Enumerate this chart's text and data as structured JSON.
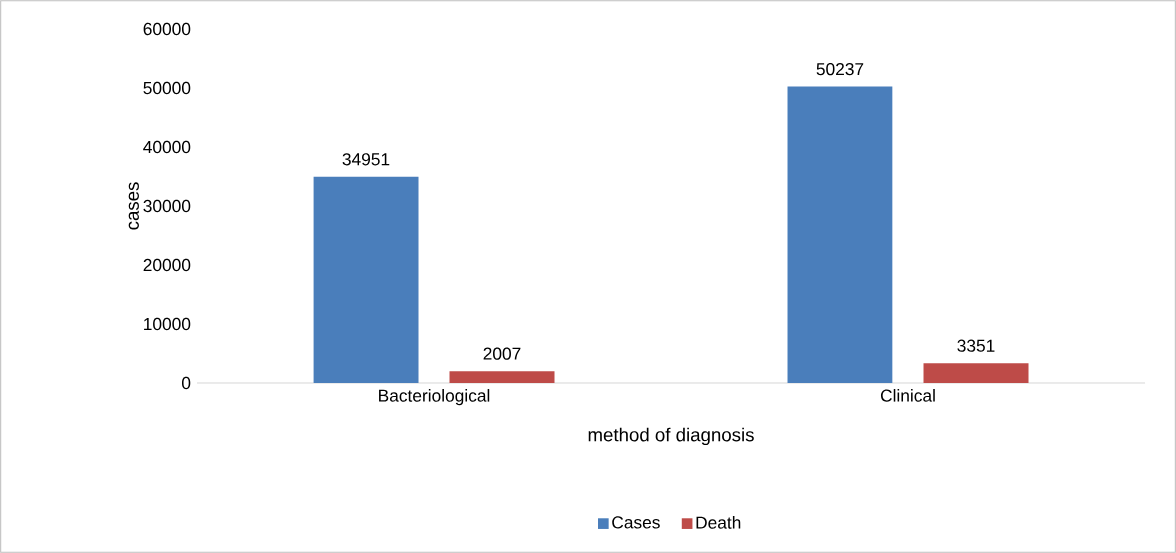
{
  "chart_data": {
    "type": "bar",
    "xlabel": "method of diagnosis",
    "ylabel": "cases",
    "categories": [
      "Bacteriological",
      "Clinical"
    ],
    "series": [
      {
        "name": "Cases",
        "color": "#4a7ebb",
        "values": [
          34951,
          50237
        ]
      },
      {
        "name": "Death",
        "color": "#be4b48",
        "values": [
          2007,
          3351
        ]
      }
    ],
    "ylim": [
      0,
      60000
    ],
    "yticks": [
      0,
      10000,
      20000,
      30000,
      40000,
      50000,
      60000
    ],
    "data_labels": true,
    "grid": false,
    "legend": "bottom"
  }
}
